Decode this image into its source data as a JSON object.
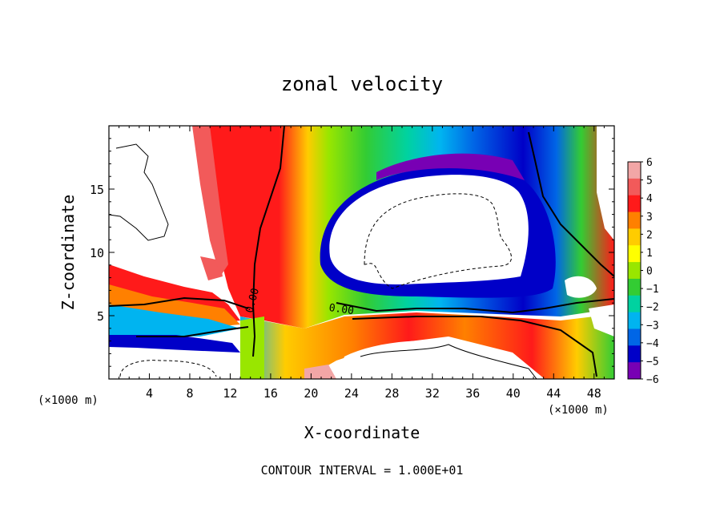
{
  "chart_data": {
    "type": "heatmap",
    "title": "zonal velocity",
    "xlabel": "X-coordinate",
    "ylabel": "Z-coordinate",
    "x_unit_note": "(×1000 m)",
    "footer": "CONTOUR INTERVAL = 1.000E+01",
    "xlim": [
      0,
      50
    ],
    "ylim": [
      0,
      20
    ],
    "x_ticks": [
      4,
      8,
      12,
      16,
      20,
      24,
      28,
      32,
      36,
      40,
      44,
      48
    ],
    "y_ticks": [
      5,
      10,
      15
    ],
    "colorbar": {
      "levels": [
        6,
        5,
        4,
        3,
        2,
        1,
        0,
        -1,
        -2,
        -3,
        -4,
        -5,
        -6
      ],
      "colors": [
        "#f2a6a6",
        "#f25a5a",
        "#ff1a1a",
        "#ff8000",
        "#ffcc00",
        "#ffff00",
        "#99e600",
        "#33cc33",
        "#00d2a0",
        "#00b4f0",
        "#0066e6",
        "#0000c8",
        "#7800b4"
      ]
    },
    "contour_labels": [
      {
        "text": "0.00",
        "x": 14.2,
        "z": 6.2,
        "rotate": -75
      },
      {
        "text": "0.00",
        "x": 23.0,
        "z": 5.5,
        "rotate": 8
      }
    ]
  }
}
